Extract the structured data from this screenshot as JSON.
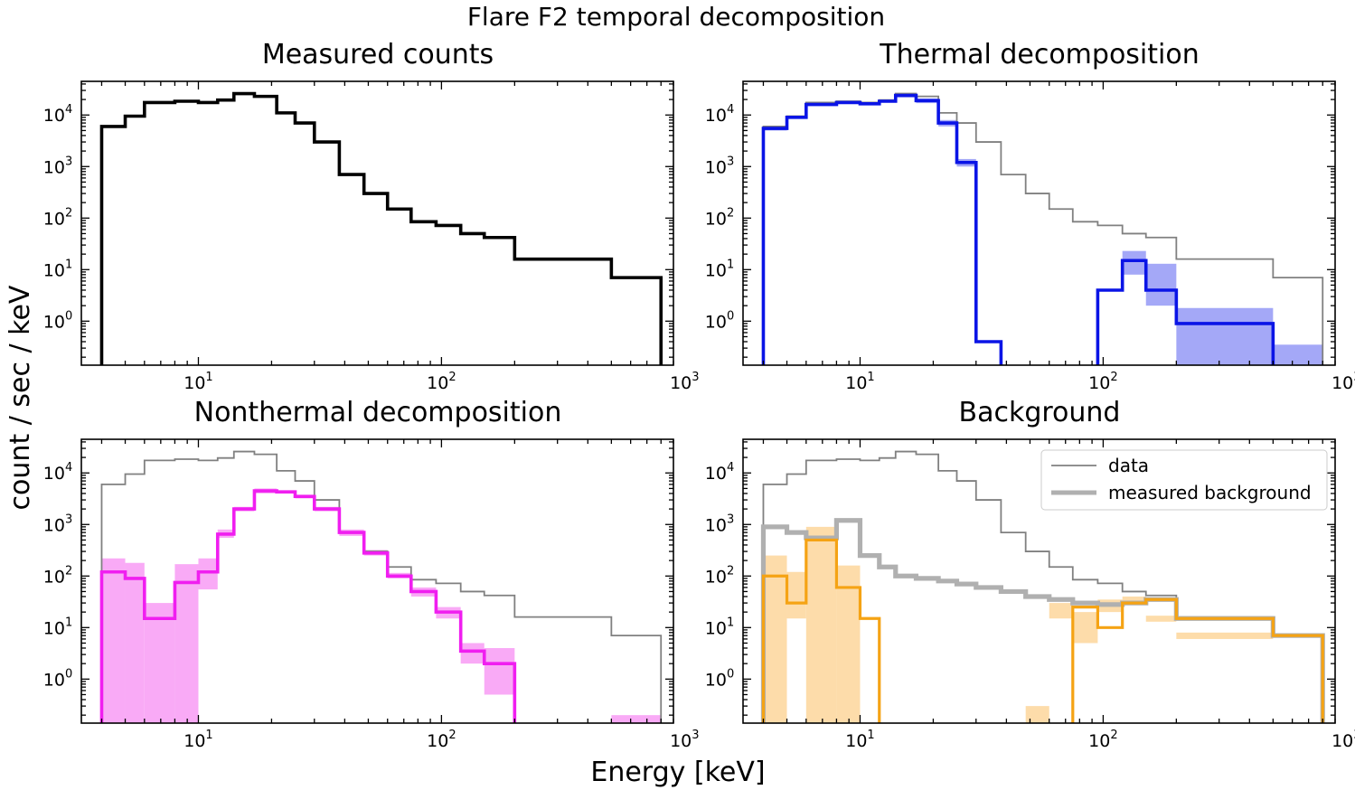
{
  "figure": {
    "suptitle": "Flare F2 temporal decomposition",
    "ylabel": "count / sec / keV",
    "xlabel": "Energy [keV]"
  },
  "legend": {
    "placement": "top-right of Background panel",
    "items": [
      {
        "label": "data",
        "color": "#808080"
      },
      {
        "label": "measured background",
        "color": "#b0b0b0"
      }
    ]
  },
  "colors": {
    "data": "#000000",
    "data_thin": "#808080",
    "thermal": "#0a14e6",
    "thermal_band": "#a4a8f7",
    "nonthermal": "#f01ef0",
    "nonthermal_band": "#f9aaf6",
    "background_fit": "#f5a314",
    "background_band": "#fddcaa",
    "measured_background": "#b0b0b0"
  },
  "chart_data": [
    {
      "type": "line",
      "drawstyle": "steps",
      "title": "Measured counts",
      "xscale": "log",
      "yscale": "log",
      "xlim": [
        3.3,
        900
      ],
      "ylim": [
        0.14,
        45000
      ],
      "xticks": [
        {
          "value": 10,
          "label": "10^1"
        },
        {
          "value": 100,
          "label": "10^2"
        },
        {
          "value": 1000,
          "label": "10^3"
        }
      ],
      "yticks": [
        {
          "value": 1,
          "label": "10^0"
        },
        {
          "value": 10,
          "label": "10^1"
        },
        {
          "value": 100,
          "label": "10^2"
        },
        {
          "value": 1000,
          "label": "10^3"
        },
        {
          "value": 10000,
          "label": "10^4"
        }
      ],
      "bin_edges": [
        4,
        5,
        6,
        8,
        10,
        12,
        14,
        17,
        21,
        25,
        30,
        38,
        48,
        60,
        75,
        95,
        120,
        150,
        200,
        500,
        800
      ],
      "series": [
        {
          "role": "data",
          "values": [
            6000,
            9500,
            17500,
            18500,
            17500,
            19500,
            26000,
            23000,
            11000,
            7000,
            3000,
            700,
            300,
            150,
            85,
            72,
            50,
            42,
            16,
            7
          ]
        }
      ]
    },
    {
      "type": "line",
      "drawstyle": "steps",
      "title": "Thermal decomposition",
      "xscale": "log",
      "yscale": "log",
      "xlim": [
        3.3,
        900
      ],
      "ylim": [
        0.14,
        45000
      ],
      "xticks": [
        {
          "value": 10,
          "label": "10^1"
        },
        {
          "value": 100,
          "label": "10^2"
        },
        {
          "value": 1000,
          "label": "10^3"
        }
      ],
      "yticks": [
        {
          "value": 1,
          "label": "10^0"
        },
        {
          "value": 10,
          "label": "10^1"
        },
        {
          "value": 100,
          "label": "10^2"
        },
        {
          "value": 1000,
          "label": "10^3"
        },
        {
          "value": 10000,
          "label": "10^4"
        }
      ],
      "bin_edges": [
        4,
        5,
        6,
        8,
        10,
        12,
        14,
        17,
        21,
        25,
        30,
        38,
        48,
        60,
        75,
        95,
        120,
        150,
        200,
        500,
        800
      ],
      "series": [
        {
          "role": "data",
          "values": [
            6000,
            9500,
            17500,
            18500,
            17500,
            19500,
            26000,
            23000,
            11000,
            7000,
            3000,
            700,
            300,
            150,
            85,
            72,
            50,
            42,
            16,
            7
          ]
        },
        {
          "role": "component",
          "values": [
            5500,
            9000,
            16000,
            17500,
            16500,
            18500,
            24000,
            19000,
            7000,
            1200,
            0.4,
            null,
            null,
            null,
            null,
            4,
            15,
            4,
            0.9,
            null
          ]
        },
        {
          "role": "band_low",
          "values": [
            5000,
            8500,
            15000,
            16500,
            15500,
            17500,
            22000,
            17000,
            6000,
            1000,
            null,
            null,
            null,
            null,
            null,
            null,
            8,
            2,
            0.14,
            0.14
          ]
        },
        {
          "role": "band_high",
          "values": [
            6000,
            9500,
            17000,
            18500,
            17500,
            19500,
            26000,
            21000,
            8000,
            1400,
            3.5,
            null,
            null,
            null,
            0.4,
            8,
            23,
            13,
            1.8,
            0.35
          ]
        }
      ]
    },
    {
      "type": "line",
      "drawstyle": "steps",
      "title": "Nonthermal decomposition",
      "xscale": "log",
      "yscale": "log",
      "xlim": [
        3.3,
        900
      ],
      "ylim": [
        0.14,
        45000
      ],
      "xticks": [
        {
          "value": 10,
          "label": "10^1"
        },
        {
          "value": 100,
          "label": "10^2"
        },
        {
          "value": 1000,
          "label": "10^3"
        }
      ],
      "yticks": [
        {
          "value": 1,
          "label": "10^0"
        },
        {
          "value": 10,
          "label": "10^1"
        },
        {
          "value": 100,
          "label": "10^2"
        },
        {
          "value": 1000,
          "label": "10^3"
        },
        {
          "value": 10000,
          "label": "10^4"
        }
      ],
      "bin_edges": [
        4,
        5,
        6,
        8,
        10,
        12,
        14,
        17,
        21,
        25,
        30,
        38,
        48,
        60,
        75,
        95,
        120,
        150,
        200,
        500,
        800
      ],
      "series": [
        {
          "role": "data",
          "values": [
            6000,
            9500,
            17500,
            18500,
            17500,
            19500,
            26000,
            23000,
            11000,
            7000,
            3000,
            700,
            300,
            150,
            85,
            72,
            50,
            42,
            16,
            7
          ]
        },
        {
          "role": "component",
          "values": [
            120,
            90,
            15,
            75,
            120,
            650,
            2000,
            4500,
            4300,
            3500,
            2000,
            700,
            280,
            100,
            50,
            20,
            3.5,
            2,
            null,
            null
          ]
        },
        {
          "role": "band_low",
          "values": [
            0.14,
            0.14,
            0.14,
            0.14,
            55,
            550,
            1800,
            4000,
            4000,
            3200,
            1800,
            600,
            250,
            90,
            40,
            15,
            2,
            0.5,
            0.14,
            0.14
          ]
        },
        {
          "role": "band_high",
          "values": [
            220,
            180,
            30,
            170,
            220,
            800,
            2200,
            5000,
            4600,
            3800,
            2200,
            800,
            320,
            115,
            60,
            25,
            5,
            4,
            0.14,
            0.2
          ]
        }
      ]
    },
    {
      "type": "line",
      "drawstyle": "steps",
      "title": "Background",
      "xscale": "log",
      "yscale": "log",
      "xlim": [
        3.3,
        900
      ],
      "ylim": [
        0.14,
        45000
      ],
      "xticks": [
        {
          "value": 10,
          "label": "10^1"
        },
        {
          "value": 100,
          "label": "10^2"
        },
        {
          "value": 1000,
          "label": "10^3"
        }
      ],
      "yticks": [
        {
          "value": 1,
          "label": "10^0"
        },
        {
          "value": 10,
          "label": "10^1"
        },
        {
          "value": 100,
          "label": "10^2"
        },
        {
          "value": 1000,
          "label": "10^3"
        },
        {
          "value": 10000,
          "label": "10^4"
        }
      ],
      "bin_edges": [
        4,
        5,
        6,
        8,
        10,
        12,
        14,
        17,
        21,
        25,
        30,
        38,
        48,
        60,
        75,
        95,
        120,
        150,
        200,
        500,
        800
      ],
      "series": [
        {
          "role": "data",
          "values": [
            6000,
            9500,
            17500,
            18500,
            17500,
            19500,
            26000,
            23000,
            11000,
            7000,
            3000,
            700,
            300,
            150,
            85,
            72,
            50,
            42,
            16,
            7
          ]
        },
        {
          "role": "measured_background",
          "values": [
            900,
            700,
            550,
            1200,
            250,
            150,
            100,
            90,
            80,
            70,
            60,
            50,
            40,
            35,
            30,
            28,
            30,
            35,
            15,
            7
          ]
        },
        {
          "role": "component",
          "values": [
            100,
            30,
            500,
            60,
            15,
            null,
            null,
            null,
            null,
            null,
            null,
            null,
            null,
            null,
            25,
            10,
            30,
            35,
            15,
            7
          ]
        },
        {
          "role": "band_low",
          "values": [
            0.14,
            15,
            0.14,
            0.14,
            null,
            null,
            null,
            null,
            null,
            null,
            null,
            null,
            0.14,
            15,
            5,
            20,
            30,
            13,
            6,
            null
          ]
        },
        {
          "role": "band_high",
          "values": [
            250,
            120,
            900,
            160,
            null,
            null,
            null,
            null,
            null,
            null,
            null,
            null,
            0.3,
            30,
            20,
            35,
            40,
            17,
            8,
            null
          ]
        }
      ]
    }
  ]
}
